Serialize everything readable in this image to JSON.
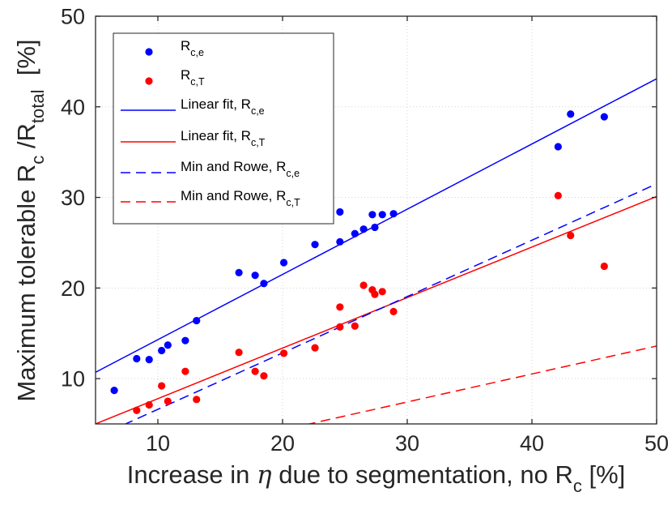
{
  "chart_data": {
    "type": "scatter",
    "title": "",
    "xlabel_parts": [
      "Increase in ",
      "η",
      " due to segmentation, no R",
      "c",
      " [%]"
    ],
    "ylabel_parts": [
      "Maximum tolerable R",
      "c",
      " /R",
      "total",
      "  [%]"
    ],
    "xlim": [
      5,
      50
    ],
    "ylim": [
      5,
      50
    ],
    "xticks": [
      10,
      20,
      30,
      40,
      50
    ],
    "yticks": [
      10,
      20,
      30,
      40,
      50
    ],
    "grid": true,
    "legend_position": "top-left",
    "series": [
      {
        "name": "Rc,e",
        "legend_main": "R",
        "legend_sub": "c,e",
        "kind": "scatter",
        "color": "#0000ff",
        "points": [
          [
            6.5,
            8.7
          ],
          [
            8.3,
            12.2
          ],
          [
            9.3,
            12.1
          ],
          [
            10.3,
            13.1
          ],
          [
            10.8,
            13.7
          ],
          [
            12.2,
            14.2
          ],
          [
            13.1,
            16.4
          ],
          [
            16.5,
            21.7
          ],
          [
            17.8,
            21.4
          ],
          [
            18.5,
            20.5
          ],
          [
            20.1,
            22.8
          ],
          [
            22.6,
            24.8
          ],
          [
            24.6,
            28.4
          ],
          [
            24.6,
            25.1
          ],
          [
            25.8,
            26.0
          ],
          [
            26.5,
            26.5
          ],
          [
            27.2,
            28.1
          ],
          [
            27.4,
            26.7
          ],
          [
            28.0,
            28.1
          ],
          [
            28.9,
            28.2
          ],
          [
            42.1,
            35.6
          ],
          [
            43.1,
            39.2
          ],
          [
            45.8,
            38.9
          ]
        ]
      },
      {
        "name": "Rc,T",
        "legend_main": "R",
        "legend_sub": "c,T",
        "kind": "scatter",
        "color": "#ff0000",
        "points": [
          [
            8.3,
            6.5
          ],
          [
            9.3,
            7.1
          ],
          [
            10.3,
            9.2
          ],
          [
            10.8,
            7.5
          ],
          [
            12.2,
            10.8
          ],
          [
            13.1,
            7.7
          ],
          [
            16.5,
            12.9
          ],
          [
            17.8,
            10.8
          ],
          [
            18.5,
            10.3
          ],
          [
            20.1,
            12.8
          ],
          [
            22.6,
            13.4
          ],
          [
            24.6,
            17.9
          ],
          [
            24.6,
            15.7
          ],
          [
            25.8,
            15.8
          ],
          [
            26.5,
            20.3
          ],
          [
            27.2,
            19.8
          ],
          [
            27.4,
            19.3
          ],
          [
            28.0,
            19.6
          ],
          [
            28.9,
            17.4
          ],
          [
            42.1,
            30.2
          ],
          [
            43.1,
            25.8
          ],
          [
            45.8,
            22.4
          ]
        ]
      },
      {
        "name": "Linear fit, Rc,e",
        "legend_main": "Linear fit, R",
        "legend_sub": "c,e",
        "kind": "line",
        "dash": "solid",
        "color": "#0000ff",
        "x": [
          5,
          50
        ],
        "y": [
          10.7,
          43.1
        ]
      },
      {
        "name": "Linear fit, Rc,T",
        "legend_main": "Linear fit, R",
        "legend_sub": "c,T",
        "kind": "line",
        "dash": "solid",
        "color": "#ff0000",
        "x": [
          5,
          50
        ],
        "y": [
          5.0,
          30.1
        ]
      },
      {
        "name": "Min and Rowe, Rc,e",
        "legend_main": "Min and Rowe, R",
        "legend_sub": "c,e",
        "kind": "line",
        "dash": "dashed",
        "color": "#0000ff",
        "x": [
          5,
          50
        ],
        "y": [
          3.5,
          31.5
        ]
      },
      {
        "name": "Min and Rowe, Rc,T",
        "legend_main": "Min and Rowe, R",
        "legend_sub": "c,T",
        "kind": "line",
        "dash": "dashed",
        "color": "#ff0000",
        "x": [
          5,
          50
        ],
        "y": [
          -0.3,
          13.6
        ]
      }
    ]
  }
}
